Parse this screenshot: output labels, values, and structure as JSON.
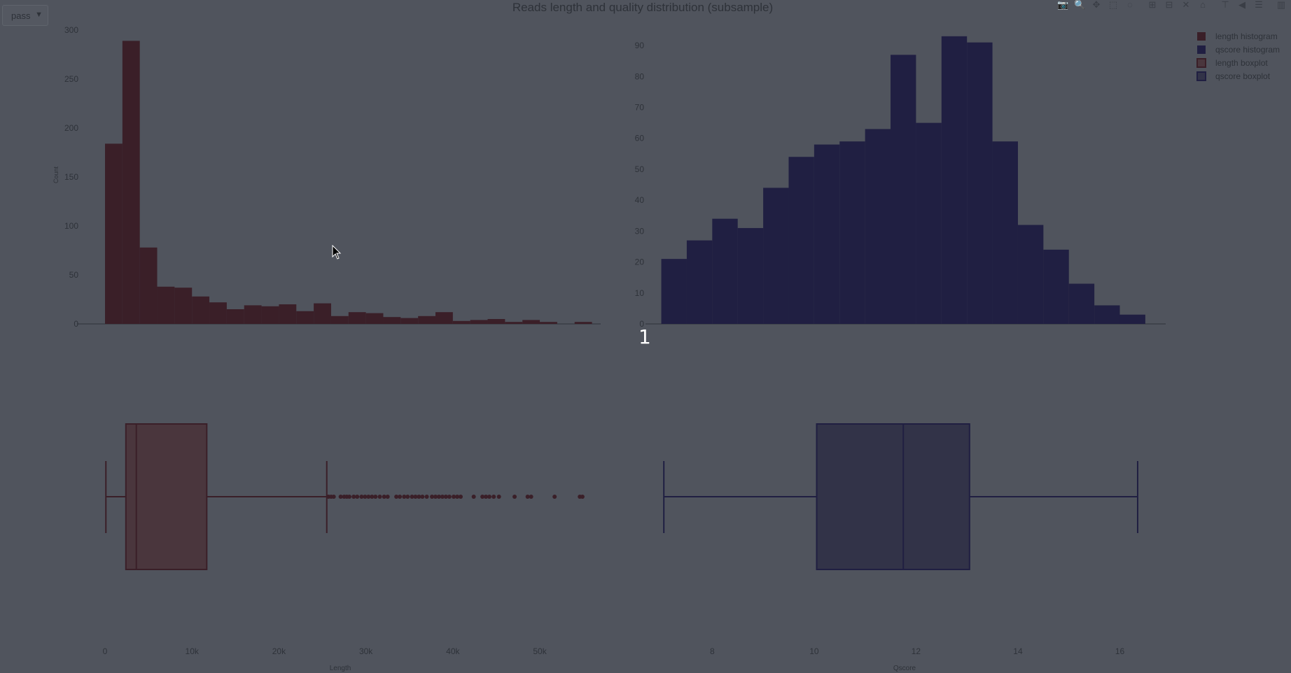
{
  "title": "Reads length and quality distribution (subsample)",
  "dropdown": {
    "selected": "pass",
    "arrow": "▼"
  },
  "overlay_number": "1",
  "modebar": {
    "icons": [
      "camera-icon",
      "zoom-icon",
      "pan-icon",
      "box-select-icon",
      "lasso-icon",
      "zoom-in-icon",
      "zoom-out-icon",
      "autoscale-icon",
      "reset-axes-icon",
      "spike-lines-icon",
      "hover-closest-icon",
      "hover-compare-icon",
      "plotly-logo-icon"
    ],
    "glyphs": [
      "📷",
      "🔍",
      "✥",
      "⬚",
      "◌",
      "⊞",
      "⊟",
      "✕",
      "⌂",
      "⊤",
      "◀",
      "☰",
      "▥"
    ]
  },
  "colors": {
    "background": "#50545d",
    "length": "#3a1f28",
    "qscore": "#201f42",
    "length_box_fill": "#4a363d",
    "qscore_box_fill": "#323348"
  },
  "chart_data": [
    {
      "type": "bar",
      "name": "length histogram",
      "ylabel": "Count",
      "ylim": [
        0,
        300
      ],
      "yticks": [
        0,
        50,
        100,
        150,
        200,
        250,
        300
      ],
      "bin_start": 0,
      "bin_width": 2000,
      "values": [
        184,
        289,
        78,
        38,
        37,
        28,
        22,
        15,
        19,
        18,
        20,
        13,
        21,
        8,
        12,
        11,
        7,
        6,
        8,
        12,
        3,
        4,
        5,
        2,
        4,
        2,
        0,
        2
      ]
    },
    {
      "type": "bar",
      "name": "qscore histogram",
      "ylim": [
        0,
        95
      ],
      "yticks": [
        0,
        10,
        20,
        30,
        40,
        50,
        60,
        70,
        80,
        90
      ],
      "bin_start": 7.0,
      "bin_width": 0.5,
      "values": [
        21,
        27,
        34,
        31,
        44,
        54,
        58,
        59,
        63,
        87,
        65,
        93,
        91,
        59,
        32,
        24,
        13,
        6,
        3
      ]
    },
    {
      "type": "box",
      "name": "length boxplot",
      "xlabel": "Length",
      "xlim": [
        0,
        57000
      ],
      "xticks": [
        0,
        10000,
        20000,
        30000,
        40000,
        50000
      ],
      "xtick_labels": [
        "0",
        "10k",
        "20k",
        "30k",
        "40k",
        "50k"
      ],
      "whisker_low": 100,
      "q1": 2400,
      "median": 3600,
      "q3": 11700,
      "whisker_high": 25500,
      "outliers": [
        25700,
        26000,
        26300,
        27100,
        27500,
        27800,
        28100,
        28600,
        29000,
        29500,
        29900,
        30300,
        30700,
        31100,
        31600,
        32100,
        32500,
        33500,
        33900,
        34400,
        34800,
        35300,
        35700,
        36100,
        36500,
        37000,
        37600,
        38000,
        38400,
        38800,
        39200,
        39600,
        40100,
        40500,
        40900,
        42400,
        43400,
        43800,
        44200,
        44700,
        45300,
        47100,
        48600,
        49000,
        51700,
        54600,
        54900
      ]
    },
    {
      "type": "box",
      "name": "qscore boxplot",
      "xlabel": "Qscore",
      "xlim": [
        6.8,
        16.9
      ],
      "xticks": [
        8,
        10,
        12,
        14,
        16
      ],
      "xtick_labels": [
        "8",
        "10",
        "12",
        "14",
        "16"
      ],
      "whisker_low": 7.05,
      "q1": 10.05,
      "median": 11.75,
      "q3": 13.05,
      "whisker_high": 16.35,
      "outliers": []
    }
  ],
  "legend": {
    "placement": "top-right",
    "entries": [
      {
        "label": "length histogram",
        "color": "#3a1f28",
        "kind": "bar"
      },
      {
        "label": "qscore histogram",
        "color": "#201f42",
        "kind": "bar"
      },
      {
        "label": "length boxplot",
        "color": "#4a363d",
        "kind": "box"
      },
      {
        "label": "qscore boxplot",
        "color": "#323348",
        "kind": "box"
      }
    ]
  }
}
